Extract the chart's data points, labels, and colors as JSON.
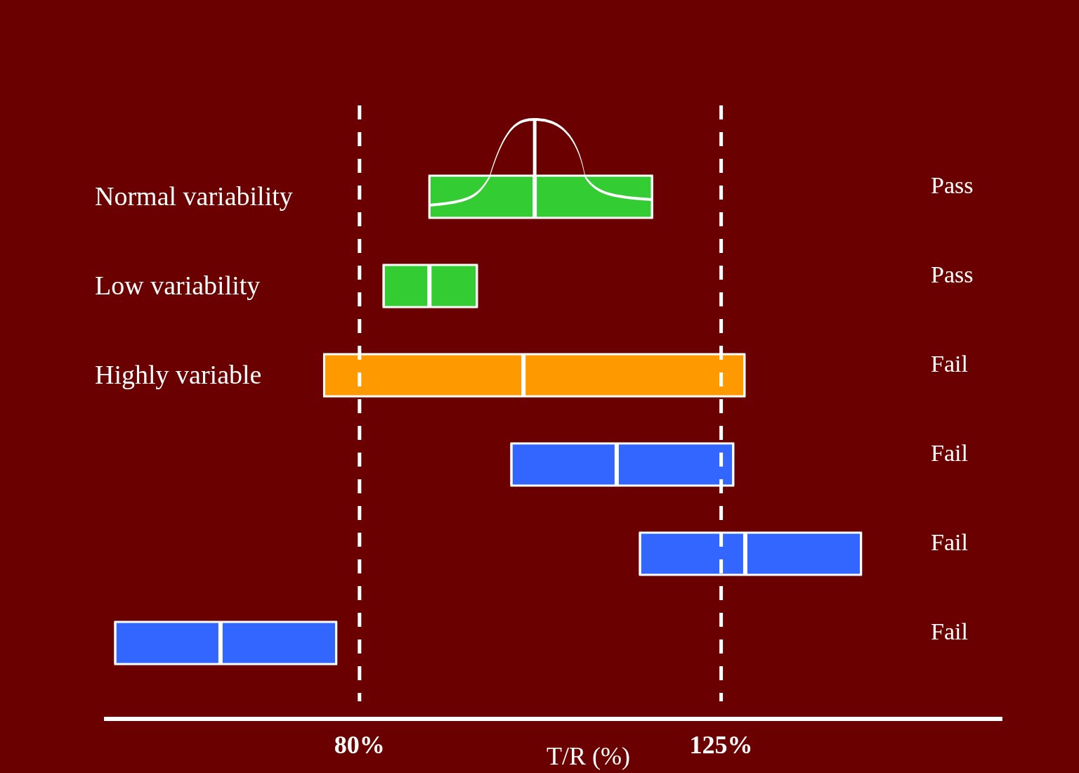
{
  "chart_data": {
    "type": "box",
    "orientation": "horizontal",
    "categories": [
      "Normal variability",
      "Low variability",
      "Highly variable",
      null,
      null,
      null
    ],
    "boxes": [
      {
        "low": 88.7,
        "q1": 88.7,
        "median": 101.8,
        "q3": 116.4,
        "high": 116.4
      },
      {
        "low": 83.0,
        "q1": 83.0,
        "median": 88.7,
        "q3": 94.6,
        "high": 94.6
      },
      {
        "low": 75.6,
        "q1": 75.6,
        "median": 100.4,
        "q3": 127.9,
        "high": 127.9
      },
      {
        "low": 98.9,
        "q1": 98.9,
        "median": 112.0,
        "q3": 126.5,
        "high": 126.5
      },
      {
        "low": 114.9,
        "q1": 114.9,
        "median": 128.0,
        "q3": 142.4,
        "high": 142.4
      },
      {
        "low": 49.6,
        "q1": 49.6,
        "median": 62.7,
        "q3": 77.1,
        "high": 77.1
      }
    ],
    "colors": [
      "#33cc33",
      "#33cc33",
      "#ff9900",
      "#3366ff",
      "#3366ff",
      "#3366ff"
    ],
    "xlim": [
      48.2,
      160
    ],
    "xticks": [
      {
        "value": 80,
        "label": "80%"
      },
      {
        "value": 125,
        "label": "125%"
      }
    ],
    "xlabel": "T/R (%)",
    "ref_lines": [
      {
        "axis": "x",
        "value": 80,
        "color": "#ffffff",
        "line_style": "dashed"
      },
      {
        "axis": "x",
        "value": 125,
        "color": "#ffffff",
        "line_style": "dashed"
      }
    ],
    "annotations": [
      "Pass",
      "Pass",
      "Fail",
      "Fail",
      "Fail",
      "Fail"
    ]
  }
}
